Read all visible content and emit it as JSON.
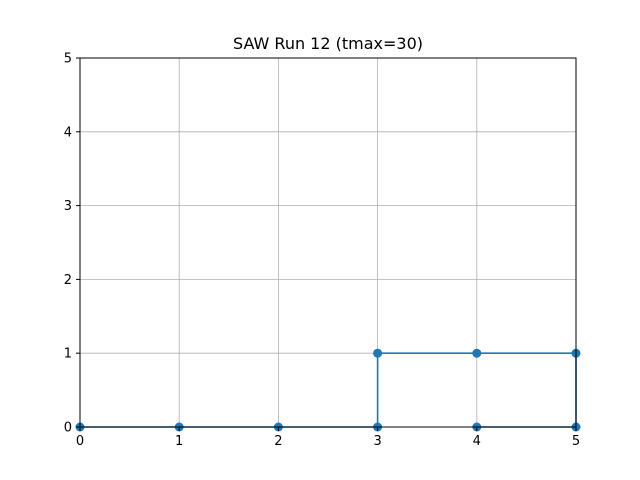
{
  "chart_data": {
    "type": "line",
    "title": "SAW Run 12 (tmax=30)",
    "xlabel": "",
    "ylabel": "",
    "xlim": [
      0,
      5
    ],
    "ylim": [
      0,
      5
    ],
    "xticks": [
      "0",
      "1",
      "2",
      "3",
      "4",
      "5"
    ],
    "yticks": [
      "0",
      "1",
      "2",
      "3",
      "4",
      "5"
    ],
    "grid": true,
    "series": [
      {
        "color": "#1f77b4",
        "marker": "circle",
        "points": [
          {
            "x": 0,
            "y": 0
          },
          {
            "x": 1,
            "y": 0
          },
          {
            "x": 2,
            "y": 0
          },
          {
            "x": 3,
            "y": 0
          },
          {
            "x": 3,
            "y": 1
          },
          {
            "x": 4,
            "y": 1
          },
          {
            "x": 5,
            "y": 1
          },
          {
            "x": 5,
            "y": 0
          },
          {
            "x": 4,
            "y": 0
          }
        ]
      }
    ]
  }
}
